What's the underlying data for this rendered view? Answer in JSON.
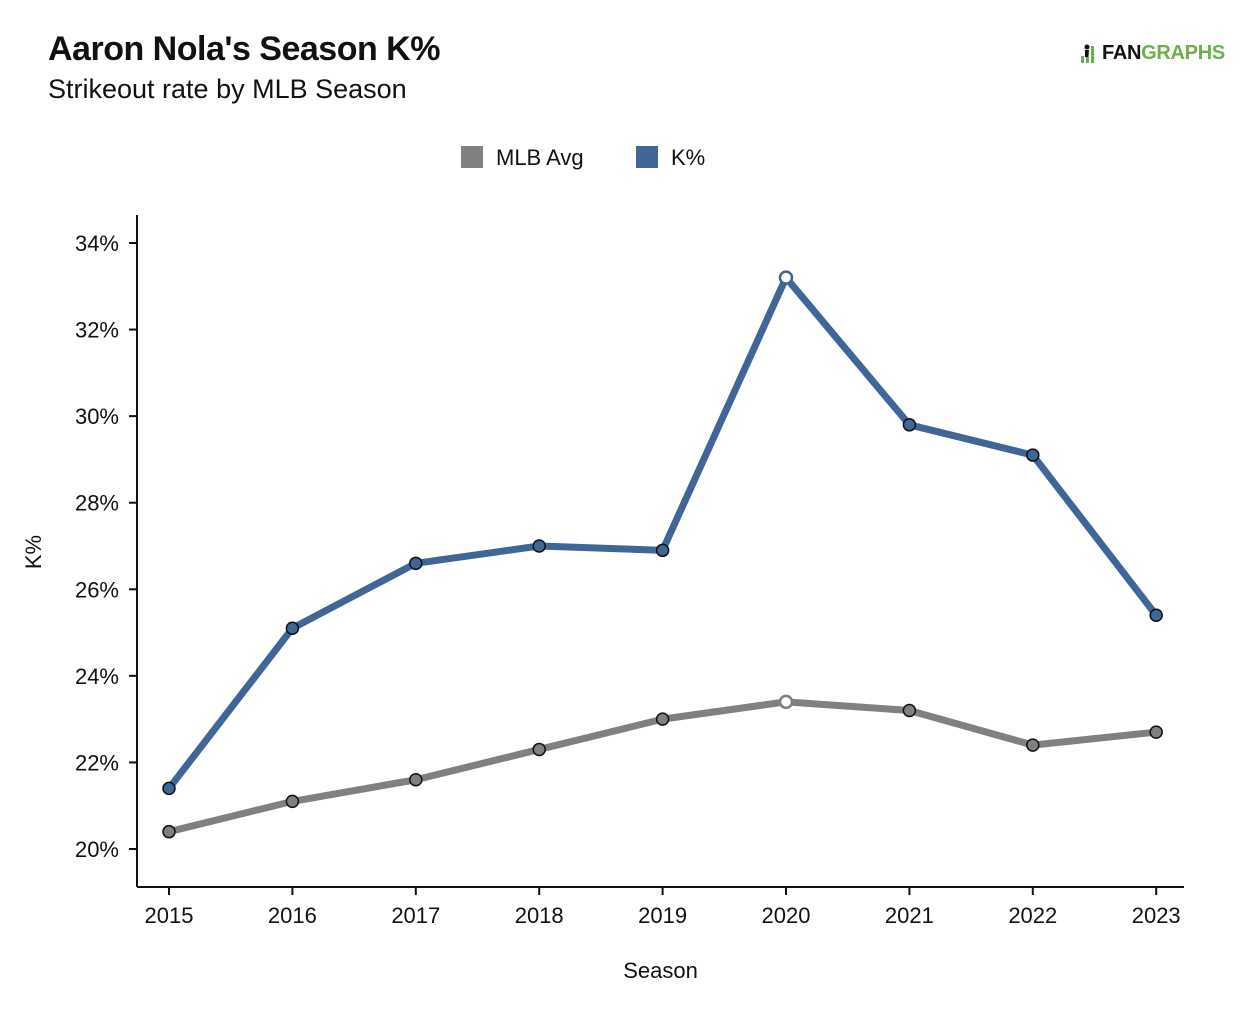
{
  "header": {
    "title": "Aaron Nola's Season K%",
    "subtitle": "Strikeout rate by MLB Season"
  },
  "logo": {
    "text_dark": "FAN",
    "text_accent": "GRAPHS",
    "icon": "fangraphs-logo-icon",
    "accent_color": "#6ab04c"
  },
  "chart_data": {
    "type": "line",
    "xlabel": "Season",
    "ylabel": "K%",
    "x": [
      2015,
      2016,
      2017,
      2018,
      2019,
      2020,
      2021,
      2022,
      2023
    ],
    "x_tick_labels": [
      "2015",
      "2016",
      "2017",
      "2018",
      "2019",
      "2020",
      "2021",
      "2022",
      "2023"
    ],
    "ylim": [
      19.5,
      34.6
    ],
    "y_ticks": [
      20,
      22,
      24,
      26,
      28,
      30,
      32,
      34
    ],
    "y_tick_labels": [
      "20%",
      "22%",
      "24%",
      "26%",
      "28%",
      "30%",
      "32%",
      "34%"
    ],
    "legend_placement": "top-center",
    "grid": false,
    "highlight_x": 2020,
    "series": [
      {
        "name": "MLB Avg",
        "color": "#808080",
        "values": [
          20.4,
          21.1,
          21.6,
          22.3,
          23.0,
          23.4,
          23.2,
          22.4,
          22.7
        ]
      },
      {
        "name": "K%",
        "color": "#3f6696",
        "values": [
          21.4,
          25.1,
          26.6,
          27.0,
          26.9,
          33.2,
          29.8,
          29.1,
          25.4
        ]
      }
    ]
  }
}
